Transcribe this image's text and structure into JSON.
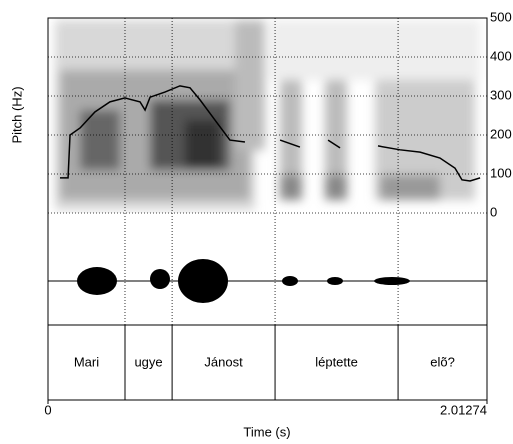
{
  "chart_data": {
    "type": "line",
    "ylabel": "Pitch (Hz)",
    "xlabel": "Time (s)",
    "xlim": [
      0,
      2.01274
    ],
    "xticks": [
      0,
      2.01274
    ],
    "ylim": [
      0,
      500
    ],
    "yticks": [
      0,
      100,
      200,
      300,
      400,
      500
    ],
    "grid": true,
    "x": [
      0.055,
      0.092,
      0.101,
      0.147,
      0.215,
      0.284,
      0.353,
      0.422,
      0.445,
      0.468,
      0.536,
      0.605,
      0.651,
      0.697,
      0.766,
      0.834,
      0.903,
      null,
      1.064,
      1.155,
      null,
      1.284,
      1.339,
      null,
      1.513,
      1.614,
      1.706,
      1.797,
      1.866,
      1.898,
      1.935,
      1.981
    ],
    "series": [
      {
        "color": "#000000",
        "values": [
          90,
          90,
          200,
          218,
          259,
          285,
          295,
          285,
          264,
          297,
          310,
          326,
          321,
          290,
          238,
          187,
          182,
          null,
          187,
          169,
          null,
          187,
          167,
          null,
          172,
          162,
          156,
          141,
          115,
          85,
          82,
          90
        ]
      }
    ],
    "tier": {
      "labels": [
        "Mari",
        "ugye",
        "Jánost",
        "léptette",
        "elõ?"
      ],
      "boundaries": [
        0.353,
        0.569,
        1.041,
        1.605
      ]
    }
  }
}
